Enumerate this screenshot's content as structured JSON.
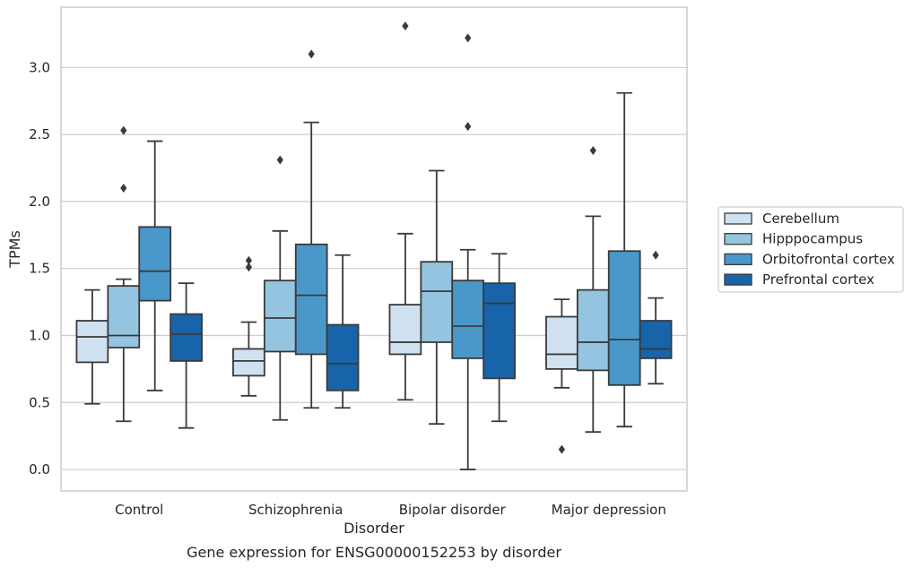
{
  "chart_data": {
    "type": "boxplot",
    "title": "Gene expression for ENSG00000152253 by disorder",
    "xlabel": "Disorder",
    "ylabel": "TPMs",
    "ylim": [
      -0.16,
      3.45
    ],
    "yticks": [
      0.0,
      0.5,
      1.0,
      1.5,
      2.0,
      2.5,
      3.0
    ],
    "ytick_labels": [
      "0.0",
      "0.5",
      "1.0",
      "1.5",
      "2.0",
      "2.5",
      "3.0"
    ],
    "grid": "horizontal",
    "legend_position": "right",
    "categories": [
      "Control",
      "Schizophrenia",
      "Bipolar disorder",
      "Major depression"
    ],
    "series": [
      {
        "name": "Cerebellum",
        "color": "#d0e1f2",
        "boxes": [
          {
            "whislo": 0.49,
            "q1": 0.8,
            "med": 0.99,
            "q3": 1.11,
            "whishi": 1.34,
            "fliers": []
          },
          {
            "whislo": 0.55,
            "q1": 0.7,
            "med": 0.81,
            "q3": 0.9,
            "whishi": 1.1,
            "fliers": [
              1.51,
              1.56
            ]
          },
          {
            "whislo": 0.52,
            "q1": 0.86,
            "med": 0.95,
            "q3": 1.23,
            "whishi": 1.76,
            "fliers": [
              3.31
            ]
          },
          {
            "whislo": 0.61,
            "q1": 0.75,
            "med": 0.86,
            "q3": 1.14,
            "whishi": 1.27,
            "fliers": [
              0.15
            ]
          }
        ]
      },
      {
        "name": "Hipppocampus",
        "color": "#94c4df",
        "boxes": [
          {
            "whislo": 0.36,
            "q1": 0.91,
            "med": 1.0,
            "q3": 1.37,
            "whishi": 1.42,
            "fliers": [
              2.1,
              2.53
            ]
          },
          {
            "whislo": 0.37,
            "q1": 0.88,
            "med": 1.13,
            "q3": 1.41,
            "whishi": 1.78,
            "fliers": [
              2.31
            ]
          },
          {
            "whislo": 0.34,
            "q1": 0.95,
            "med": 1.33,
            "q3": 1.55,
            "whishi": 2.23,
            "fliers": []
          },
          {
            "whislo": 0.28,
            "q1": 0.74,
            "med": 0.95,
            "q3": 1.34,
            "whishi": 1.89,
            "fliers": [
              2.38
            ]
          }
        ]
      },
      {
        "name": "Orbitofrontal cortex",
        "color": "#4a98c9",
        "boxes": [
          {
            "whislo": 0.59,
            "q1": 1.26,
            "med": 1.48,
            "q3": 1.81,
            "whishi": 2.45,
            "fliers": []
          },
          {
            "whislo": 0.46,
            "q1": 0.86,
            "med": 1.3,
            "q3": 1.68,
            "whishi": 2.59,
            "fliers": [
              3.1
            ]
          },
          {
            "whislo": 0.0,
            "q1": 0.83,
            "med": 1.07,
            "q3": 1.41,
            "whishi": 1.64,
            "fliers": [
              2.56,
              3.22
            ]
          },
          {
            "whislo": 0.32,
            "q1": 0.63,
            "med": 0.97,
            "q3": 1.63,
            "whishi": 2.81,
            "fliers": []
          }
        ]
      },
      {
        "name": "Prefrontal cortex",
        "color": "#1764ab",
        "boxes": [
          {
            "whislo": 0.31,
            "q1": 0.81,
            "med": 1.01,
            "q3": 1.16,
            "whishi": 1.39,
            "fliers": []
          },
          {
            "whislo": 0.46,
            "q1": 0.59,
            "med": 0.79,
            "q3": 1.08,
            "whishi": 1.6,
            "fliers": []
          },
          {
            "whislo": 0.36,
            "q1": 0.68,
            "med": 1.24,
            "q3": 1.39,
            "whishi": 1.61,
            "fliers": []
          },
          {
            "whislo": 0.64,
            "q1": 0.83,
            "med": 0.9,
            "q3": 1.11,
            "whishi": 1.28,
            "fliers": [
              1.6
            ]
          }
        ]
      }
    ]
  },
  "colors": {
    "axes_edge": "#cccccc",
    "grid": "#cccccc",
    "line": "#3a3a3a",
    "text": "#262626"
  }
}
